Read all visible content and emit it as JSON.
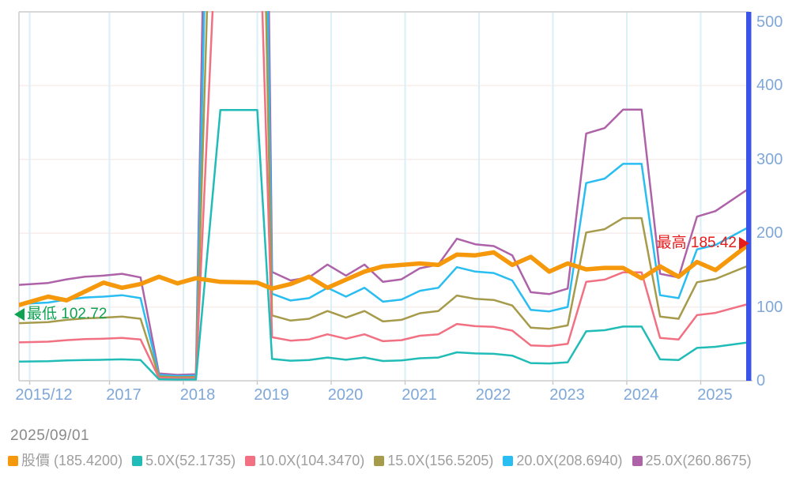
{
  "date_label": "2025/09/01",
  "annotations": {
    "min": {
      "label": "最低 102.72",
      "value": 102.72,
      "at_x": 2015.92,
      "color": "#0fa351"
    },
    "max": {
      "label": "最高 185.42",
      "value": 185.42,
      "at_x": 2025.67,
      "color": "#e51c1c"
    }
  },
  "axis": {
    "y_ticks": [
      0,
      100,
      200,
      300,
      400,
      500
    ],
    "x_ticks": [
      {
        "label": "2015/12",
        "year": 2015.92
      },
      {
        "label": "2017",
        "year": 2017
      },
      {
        "label": "2018",
        "year": 2018
      },
      {
        "label": "2019",
        "year": 2019
      },
      {
        "label": "2020",
        "year": 2020
      },
      {
        "label": "2021",
        "year": 2021
      },
      {
        "label": "2022",
        "year": 2022
      },
      {
        "label": "2023",
        "year": 2023
      },
      {
        "label": "2024",
        "year": 2024
      },
      {
        "label": "2025",
        "year": 2025
      }
    ],
    "tick_text_color": "#7fa8d9",
    "right_axis_color": "#3a53e8",
    "border_color": "#cccccc"
  },
  "chart_data": {
    "type": "line",
    "title": "",
    "xlabel": "",
    "ylabel": "",
    "ylim": [
      0,
      500
    ],
    "grid": {
      "vertical_color": "#d9effa",
      "horizontal_color": "#f7edeb"
    },
    "legend_position": "bottom",
    "x_years": [
      2015.92,
      2016.17,
      2016.42,
      2016.67,
      2016.92,
      2017.17,
      2017.42,
      2017.67,
      2017.92,
      2018.17,
      2018.5,
      2019.0,
      2019.2,
      2019.45,
      2019.7,
      2019.95,
      2020.2,
      2020.45,
      2020.7,
      2020.95,
      2021.2,
      2021.45,
      2021.7,
      2021.95,
      2022.2,
      2022.45,
      2022.7,
      2022.95,
      2023.2,
      2023.45,
      2023.7,
      2023.95,
      2024.2,
      2024.45,
      2024.7,
      2024.95,
      2025.2,
      2025.67
    ],
    "price_series": {
      "name": "股價",
      "legend_label": "股價 (185.4200)",
      "current_value": 185.42,
      "color": "#f5980b",
      "values": [
        102.72,
        114,
        109,
        121,
        133,
        126,
        131,
        141,
        132,
        139,
        134,
        133,
        125,
        131,
        141,
        126,
        137,
        148,
        155,
        157,
        159,
        157,
        171,
        170,
        174,
        157,
        168,
        148,
        159,
        151,
        153,
        153,
        139,
        155,
        141,
        161,
        150,
        185.42
      ]
    },
    "pe_bands": {
      "note": "band value = base_5x_values × (multiplier/1); base is the 5.0X line (5 × EPS)",
      "base_5x_values": [
        26,
        26.5,
        27.5,
        28.2,
        28.5,
        29,
        28,
        2,
        1.6,
        1.75,
        367,
        367,
        29.5,
        27.2,
        28,
        31.5,
        28.5,
        31.5,
        26.8,
        27.5,
        30.5,
        31.5,
        38.5,
        37,
        36.5,
        34,
        24,
        23.5,
        25,
        67,
        68.5,
        73.5,
        73.5,
        29,
        28,
        44.5,
        46,
        52.1735
      ],
      "bands": [
        {
          "name": "5.0X",
          "legend_label": "5.0X(52.1735)",
          "multiplier": 1,
          "current_value": 52.1735,
          "color": "#21bcb7"
        },
        {
          "name": "10.0X",
          "legend_label": "10.0X(104.3470)",
          "multiplier": 2,
          "current_value": 104.347,
          "color": "#f17082"
        },
        {
          "name": "15.0X",
          "legend_label": "15.0X(156.5205)",
          "multiplier": 3,
          "current_value": 156.5205,
          "color": "#a69a4b"
        },
        {
          "name": "20.0X",
          "legend_label": "20.0X(208.6940)",
          "multiplier": 4,
          "current_value": 208.694,
          "color": "#29bdf2"
        },
        {
          "name": "25.0X",
          "legend_label": "25.0X(260.8675)",
          "multiplier": 5,
          "current_value": 260.8675,
          "color": "#ae62a8"
        }
      ]
    }
  }
}
